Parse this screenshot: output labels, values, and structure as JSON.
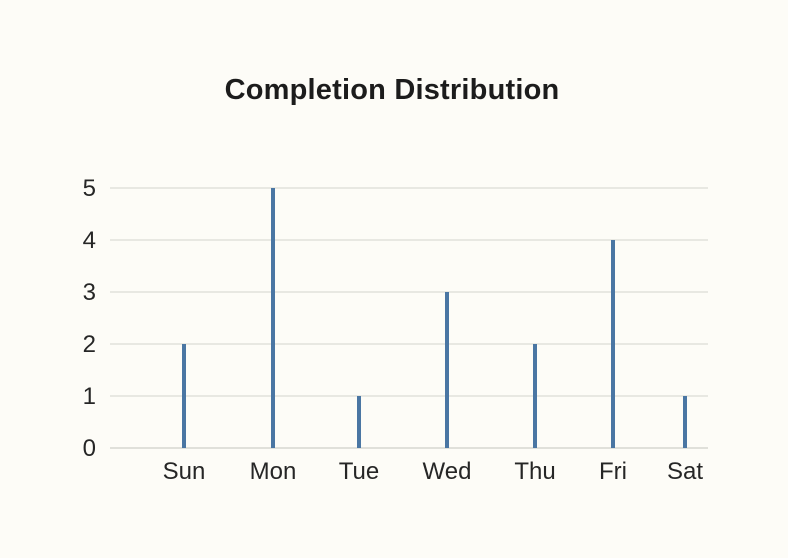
{
  "chart_data": {
    "type": "bar",
    "title": "Completion Distribution",
    "xlabel": "",
    "ylabel": "",
    "categories": [
      "Sun",
      "Mon",
      "Tue",
      "Wed",
      "Thu",
      "Fri",
      "Sat"
    ],
    "values": [
      2,
      5,
      1,
      3,
      2,
      4,
      1
    ],
    "ylim": [
      0,
      5
    ],
    "yticks": [
      "0",
      "1",
      "2",
      "3",
      "4",
      "5"
    ],
    "grid": true,
    "legend": "none",
    "colors": {
      "bar": "#4a76a3",
      "grid": "#e1e1dc",
      "background": "#fdfcf7"
    }
  }
}
